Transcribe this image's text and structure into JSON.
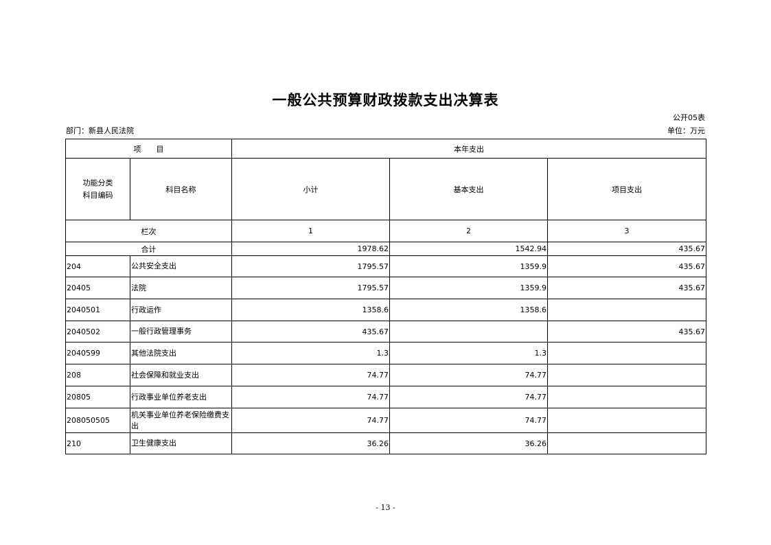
{
  "title": "一般公共预算财政拨款支出决算表",
  "form_no": "公开05表",
  "department": "部门：新县人民法院",
  "unit": "单位：万元",
  "header": {
    "item": "项　　目",
    "current_year": "本年支出",
    "code": "功能分类\n科目编码",
    "name": "科目名称",
    "subtotal": "小计",
    "basic": "基本支出",
    "project": "项目支出",
    "column_order": "栏次",
    "col1": "1",
    "col2": "2",
    "col3": "3"
  },
  "total": {
    "label": "合计",
    "subtotal": "1978.62",
    "basic": "1542.94",
    "project": "435.67"
  },
  "rows": [
    {
      "code": "204",
      "name": "公共安全支出",
      "subtotal": "1795.57",
      "basic": "1359.9",
      "project": "435.67"
    },
    {
      "code": "20405",
      "name": "法院",
      "subtotal": "1795.57",
      "basic": "1359.9",
      "project": "435.67"
    },
    {
      "code": "2040501",
      "name": "行政运作",
      "subtotal": "1358.6",
      "basic": "1358.6",
      "project": ""
    },
    {
      "code": "2040502",
      "name": "一般行政管理事务",
      "subtotal": "435.67",
      "basic": "",
      "project": "435.67"
    },
    {
      "code": "2040599",
      "name": "其他法院支出",
      "subtotal": "1.3",
      "basic": "1.3",
      "project": ""
    },
    {
      "code": "208",
      "name": "社会保障和就业支出",
      "subtotal": "74.77",
      "basic": "74.77",
      "project": ""
    },
    {
      "code": "20805",
      "name": "行政事业单位养老支出",
      "subtotal": "74.77",
      "basic": "74.77",
      "project": ""
    },
    {
      "code": "208050505",
      "name": "机关事业单位养老保险缴费支出",
      "subtotal": "74.77",
      "basic": "74.77",
      "project": ""
    },
    {
      "code": "210",
      "name": "卫生健康支出",
      "subtotal": "36.26",
      "basic": "36.26",
      "project": ""
    }
  ],
  "page_number": "- 13 -"
}
